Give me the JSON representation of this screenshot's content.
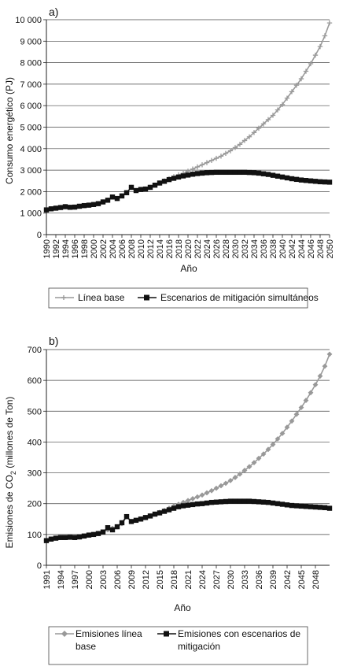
{
  "chart_data": [
    {
      "type": "line",
      "panel_label": "a)",
      "ylabel": "Consumo energético (PJ)",
      "xlabel": "Año",
      "ylim": [
        0,
        10000
      ],
      "yticks": [
        0,
        1000,
        2000,
        3000,
        4000,
        5000,
        6000,
        7000,
        8000,
        9000,
        10000
      ],
      "ytick_labels": [
        "0",
        "1 000",
        "2 000",
        "3 000",
        "4 000",
        "5 000",
        "6 000",
        "7 000",
        "8 000",
        "9 000",
        "10 000"
      ],
      "xlim": [
        1990,
        2050
      ],
      "xticks": [
        1990,
        1992,
        1994,
        1996,
        1998,
        2000,
        2002,
        2004,
        2006,
        2008,
        2010,
        2012,
        2014,
        2016,
        2018,
        2020,
        2022,
        2024,
        2026,
        2028,
        2030,
        2032,
        2034,
        2036,
        2038,
        2040,
        2042,
        2044,
        2046,
        2048,
        2050
      ],
      "grid": "horizontal",
      "legend": "bottom",
      "series": [
        {
          "name": "Línea base",
          "color": "#999999",
          "marker": "plus",
          "x": [
            1990,
            1991,
            1992,
            1993,
            1994,
            1995,
            1996,
            1997,
            1998,
            1999,
            2000,
            2001,
            2002,
            2003,
            2004,
            2005,
            2006,
            2007,
            2008,
            2009,
            2010,
            2011,
            2012,
            2013,
            2014,
            2015,
            2016,
            2017,
            2018,
            2019,
            2020,
            2021,
            2022,
            2023,
            2024,
            2025,
            2026,
            2027,
            2028,
            2029,
            2030,
            2031,
            2032,
            2033,
            2034,
            2035,
            2036,
            2037,
            2038,
            2039,
            2040,
            2041,
            2042,
            2043,
            2044,
            2045,
            2046,
            2047,
            2048,
            2049,
            2050
          ],
          "y": [
            1150,
            1200,
            1230,
            1260,
            1300,
            1270,
            1280,
            1320,
            1350,
            1370,
            1400,
            1440,
            1520,
            1600,
            1750,
            1680,
            1800,
            1950,
            2200,
            2050,
            2100,
            2120,
            2200,
            2300,
            2400,
            2500,
            2600,
            2700,
            2780,
            2850,
            2950,
            3050,
            3150,
            3250,
            3350,
            3450,
            3550,
            3650,
            3780,
            3900,
            4050,
            4200,
            4380,
            4550,
            4750,
            4950,
            5150,
            5350,
            5550,
            5800,
            6050,
            6350,
            6650,
            6950,
            7250,
            7600,
            7950,
            8350,
            8750,
            9250,
            9850
          ]
        },
        {
          "name": "Escenarios de mitigación simultáneos",
          "color": "#111111",
          "marker": "square",
          "x": [
            1990,
            1991,
            1992,
            1993,
            1994,
            1995,
            1996,
            1997,
            1998,
            1999,
            2000,
            2001,
            2002,
            2003,
            2004,
            2005,
            2006,
            2007,
            2008,
            2009,
            2010,
            2011,
            2012,
            2013,
            2014,
            2015,
            2016,
            2017,
            2018,
            2019,
            2020,
            2021,
            2022,
            2023,
            2024,
            2025,
            2026,
            2027,
            2028,
            2029,
            2030,
            2031,
            2032,
            2033,
            2034,
            2035,
            2036,
            2037,
            2038,
            2039,
            2040,
            2041,
            2042,
            2043,
            2044,
            2045,
            2046,
            2047,
            2048,
            2049,
            2050
          ],
          "y": [
            1150,
            1200,
            1230,
            1260,
            1300,
            1270,
            1280,
            1320,
            1350,
            1370,
            1400,
            1440,
            1520,
            1600,
            1750,
            1680,
            1800,
            1950,
            2200,
            2050,
            2100,
            2120,
            2200,
            2300,
            2400,
            2480,
            2560,
            2620,
            2680,
            2730,
            2770,
            2810,
            2840,
            2860,
            2880,
            2890,
            2900,
            2900,
            2900,
            2900,
            2900,
            2900,
            2900,
            2890,
            2880,
            2860,
            2830,
            2800,
            2760,
            2720,
            2680,
            2640,
            2600,
            2570,
            2540,
            2520,
            2500,
            2480,
            2460,
            2450,
            2440
          ]
        }
      ]
    },
    {
      "type": "line",
      "panel_label": "b)",
      "ylabel": "Emisiones de CO",
      "ylabel_sub": "2",
      "ylabel_tail": " (millones de Ton)",
      "xlabel": "Año",
      "ylim": [
        0,
        700
      ],
      "yticks": [
        0,
        100,
        200,
        300,
        400,
        500,
        600,
        700
      ],
      "ytick_labels": [
        "0",
        "100",
        "200",
        "300",
        "400",
        "500",
        "600",
        "700"
      ],
      "xlim": [
        1991,
        2051
      ],
      "xticks": [
        1991,
        1994,
        1997,
        2000,
        2003,
        2006,
        2009,
        2012,
        2015,
        2018,
        2021,
        2024,
        2027,
        2030,
        2033,
        2036,
        2039,
        2042,
        2045,
        2048
      ],
      "grid": "horizontal",
      "legend": "bottom",
      "series": [
        {
          "name": "Emisiones línea base",
          "color": "#999999",
          "marker": "diamond",
          "x": [
            1991,
            1992,
            1993,
            1994,
            1995,
            1996,
            1997,
            1998,
            1999,
            2000,
            2001,
            2002,
            2003,
            2004,
            2005,
            2006,
            2007,
            2008,
            2009,
            2010,
            2011,
            2012,
            2013,
            2014,
            2015,
            2016,
            2017,
            2018,
            2019,
            2020,
            2021,
            2022,
            2023,
            2024,
            2025,
            2026,
            2027,
            2028,
            2029,
            2030,
            2031,
            2032,
            2033,
            2034,
            2035,
            2036,
            2037,
            2038,
            2039,
            2040,
            2041,
            2042,
            2043,
            2044,
            2045,
            2046,
            2047,
            2048,
            2049,
            2050,
            2051
          ],
          "y": [
            80,
            85,
            88,
            90,
            90,
            91,
            90,
            92,
            95,
            98,
            100,
            103,
            108,
            115,
            120,
            125,
            135,
            158,
            142,
            146,
            150,
            155,
            160,
            166,
            172,
            178,
            185,
            192,
            198,
            204,
            210,
            216,
            222,
            228,
            235,
            242,
            250,
            258,
            266,
            275,
            285,
            296,
            308,
            320,
            333,
            347,
            361,
            376,
            392,
            410,
            428,
            448,
            468,
            490,
            512,
            535,
            560,
            586,
            614,
            646,
            685
          ]
        },
        {
          "name": "Emisiones con escenarios de mitigación",
          "color": "#111111",
          "marker": "square",
          "x": [
            1991,
            1992,
            1993,
            1994,
            1995,
            1996,
            1997,
            1998,
            1999,
            2000,
            2001,
            2002,
            2003,
            2004,
            2005,
            2006,
            2007,
            2008,
            2009,
            2010,
            2011,
            2012,
            2013,
            2014,
            2015,
            2016,
            2017,
            2018,
            2019,
            2020,
            2021,
            2022,
            2023,
            2024,
            2025,
            2026,
            2027,
            2028,
            2029,
            2030,
            2031,
            2032,
            2033,
            2034,
            2035,
            2036,
            2037,
            2038,
            2039,
            2040,
            2041,
            2042,
            2043,
            2044,
            2045,
            2046,
            2047,
            2048,
            2049,
            2050,
            2051
          ],
          "y": [
            80,
            85,
            88,
            90,
            90,
            91,
            90,
            92,
            95,
            98,
            100,
            103,
            108,
            122,
            115,
            125,
            138,
            158,
            142,
            146,
            150,
            155,
            160,
            166,
            170,
            175,
            180,
            185,
            190,
            193,
            195,
            197,
            199,
            200,
            202,
            204,
            205,
            206,
            207,
            208,
            208,
            208,
            208,
            208,
            207,
            206,
            205,
            204,
            202,
            200,
            198,
            196,
            194,
            193,
            192,
            191,
            190,
            189,
            188,
            187,
            185
          ]
        }
      ]
    }
  ]
}
